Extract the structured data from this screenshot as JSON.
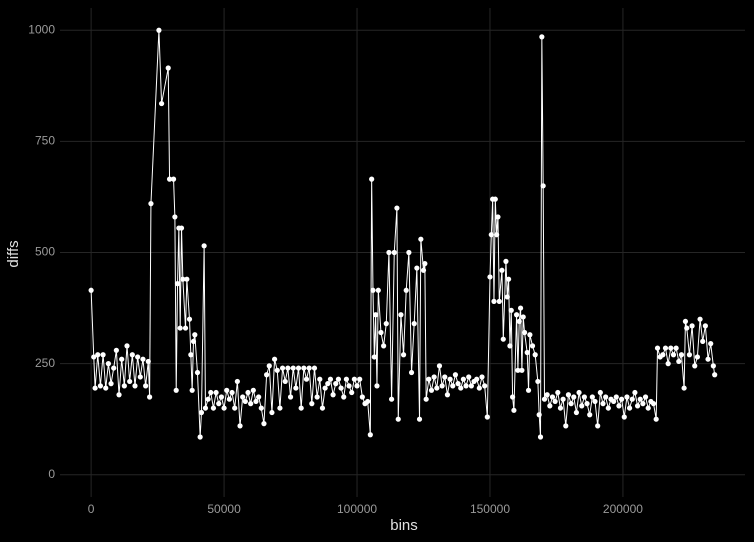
{
  "chart_data": {
    "type": "line",
    "xlabel": "bins",
    "ylabel": "diffs",
    "x": [
      0,
      1000,
      1500,
      2500,
      3500,
      4500,
      5500,
      6500,
      7500,
      8500,
      9500,
      10500,
      11500,
      12500,
      13500,
      14500,
      15500,
      16500,
      17500,
      18500,
      19500,
      20500,
      21500,
      22000,
      22500,
      25500,
      26500,
      29000,
      29500,
      31000,
      31500,
      32000,
      32500,
      33000,
      33500,
      34000,
      34500,
      35500,
      36000,
      37000,
      37500,
      38000,
      38500,
      39000,
      40000,
      41000,
      41500,
      42500,
      43000,
      44000,
      45000,
      46000,
      47000,
      48000,
      49000,
      50000,
      51000,
      52000,
      53000,
      54000,
      55000,
      56000,
      57000,
      58000,
      59000,
      60000,
      61000,
      62000,
      63000,
      64000,
      65000,
      66000,
      67000,
      68000,
      69000,
      70000,
      71000,
      72000,
      73000,
      74000,
      75000,
      76000,
      77000,
      78000,
      79000,
      80000,
      81000,
      82000,
      83000,
      84000,
      85000,
      86000,
      87000,
      88000,
      89000,
      90000,
      91000,
      92000,
      93000,
      94000,
      95000,
      96000,
      97000,
      98000,
      99000,
      100000,
      101000,
      102000,
      103000,
      104000,
      105000,
      105500,
      106000,
      106500,
      107000,
      107500,
      108000,
      109000,
      110000,
      111000,
      112000,
      113000,
      114000,
      115000,
      115500,
      116500,
      117500,
      118500,
      119500,
      120500,
      121500,
      122500,
      123500,
      124000,
      125000,
      125500,
      126000,
      127000,
      128000,
      129000,
      130000,
      131000,
      132000,
      133000,
      134000,
      135000,
      136000,
      137000,
      138000,
      139000,
      140000,
      141000,
      142000,
      143000,
      144000,
      145000,
      146000,
      147000,
      148000,
      149000,
      150000,
      150500,
      151000,
      151500,
      152000,
      152500,
      153000,
      153500,
      154500,
      155000,
      156000,
      156500,
      157000,
      157500,
      158000,
      158500,
      159000,
      160000,
      160500,
      161000,
      161500,
      162000,
      162500,
      163000,
      164000,
      164500,
      165000,
      166000,
      167000,
      168000,
      168500,
      169000,
      169500,
      170000,
      170500,
      171500,
      172500,
      173500,
      174500,
      175500,
      176500,
      177500,
      178500,
      179500,
      180500,
      181500,
      182500,
      183500,
      184500,
      185500,
      186500,
      187500,
      188500,
      189500,
      190500,
      191500,
      192500,
      193500,
      194500,
      195500,
      196500,
      197500,
      198500,
      199500,
      200500,
      201500,
      202500,
      203500,
      204500,
      205500,
      206500,
      207500,
      208500,
      209500,
      210500,
      211500,
      212500,
      213000,
      214000,
      215000,
      216000,
      217000,
      218000,
      219000,
      220000,
      221000,
      222000,
      223000,
      223500,
      224000,
      225000,
      226000,
      227000,
      228000,
      229000,
      230000,
      231000,
      232000,
      233000,
      234000,
      234500
    ],
    "series": [
      {
        "color": "#ffffff",
        "values": [
          415,
          265,
          195,
          270,
          200,
          270,
          195,
          250,
          205,
          240,
          280,
          180,
          260,
          200,
          290,
          210,
          270,
          200,
          265,
          220,
          260,
          200,
          255,
          175,
          610,
          1000,
          835,
          915,
          665,
          665,
          580,
          190,
          430,
          555,
          330,
          555,
          440,
          330,
          440,
          350,
          270,
          190,
          300,
          315,
          230,
          85,
          140,
          515,
          150,
          170,
          185,
          150,
          185,
          160,
          175,
          150,
          190,
          170,
          185,
          150,
          210,
          110,
          175,
          165,
          185,
          160,
          190,
          165,
          175,
          150,
          115,
          225,
          245,
          140,
          260,
          235,
          150,
          240,
          210,
          240,
          175,
          240,
          195,
          240,
          150,
          240,
          215,
          240,
          160,
          240,
          175,
          215,
          150,
          195,
          205,
          215,
          180,
          205,
          215,
          195,
          175,
          215,
          200,
          185,
          215,
          200,
          215,
          175,
          160,
          165,
          90,
          665,
          415,
          265,
          360,
          200,
          415,
          320,
          290,
          340,
          500,
          170,
          500,
          600,
          125,
          360,
          270,
          415,
          500,
          230,
          340,
          465,
          125,
          530,
          460,
          475,
          170,
          215,
          190,
          220,
          195,
          245,
          200,
          220,
          180,
          215,
          200,
          225,
          205,
          195,
          215,
          200,
          220,
          200,
          210,
          215,
          195,
          220,
          200,
          130,
          445,
          540,
          620,
          390,
          620,
          540,
          580,
          390,
          460,
          305,
          480,
          400,
          440,
          290,
          370,
          175,
          145,
          360,
          235,
          345,
          375,
          235,
          355,
          320,
          275,
          190,
          315,
          290,
          270,
          210,
          135,
          85,
          985,
          650,
          170,
          180,
          155,
          175,
          165,
          185,
          150,
          170,
          110,
          180,
          160,
          175,
          140,
          185,
          155,
          175,
          160,
          135,
          175,
          165,
          110,
          185,
          160,
          175,
          150,
          170,
          165,
          175,
          155,
          170,
          130,
          175,
          150,
          170,
          185,
          155,
          170,
          160,
          175,
          150,
          165,
          160,
          125,
          285,
          265,
          270,
          285,
          250,
          285,
          270,
          285,
          255,
          270,
          195,
          345,
          330,
          270,
          335,
          245,
          265,
          350,
          300,
          335,
          260,
          295,
          245,
          225
        ]
      }
    ],
    "xlim": [
      -11700,
      245900
    ],
    "ylim": [
      -50,
      1050
    ],
    "xticks": [
      0,
      50000,
      100000,
      150000,
      200000
    ],
    "yticks": [
      0,
      250,
      500,
      750,
      1000
    ],
    "grid": true
  }
}
